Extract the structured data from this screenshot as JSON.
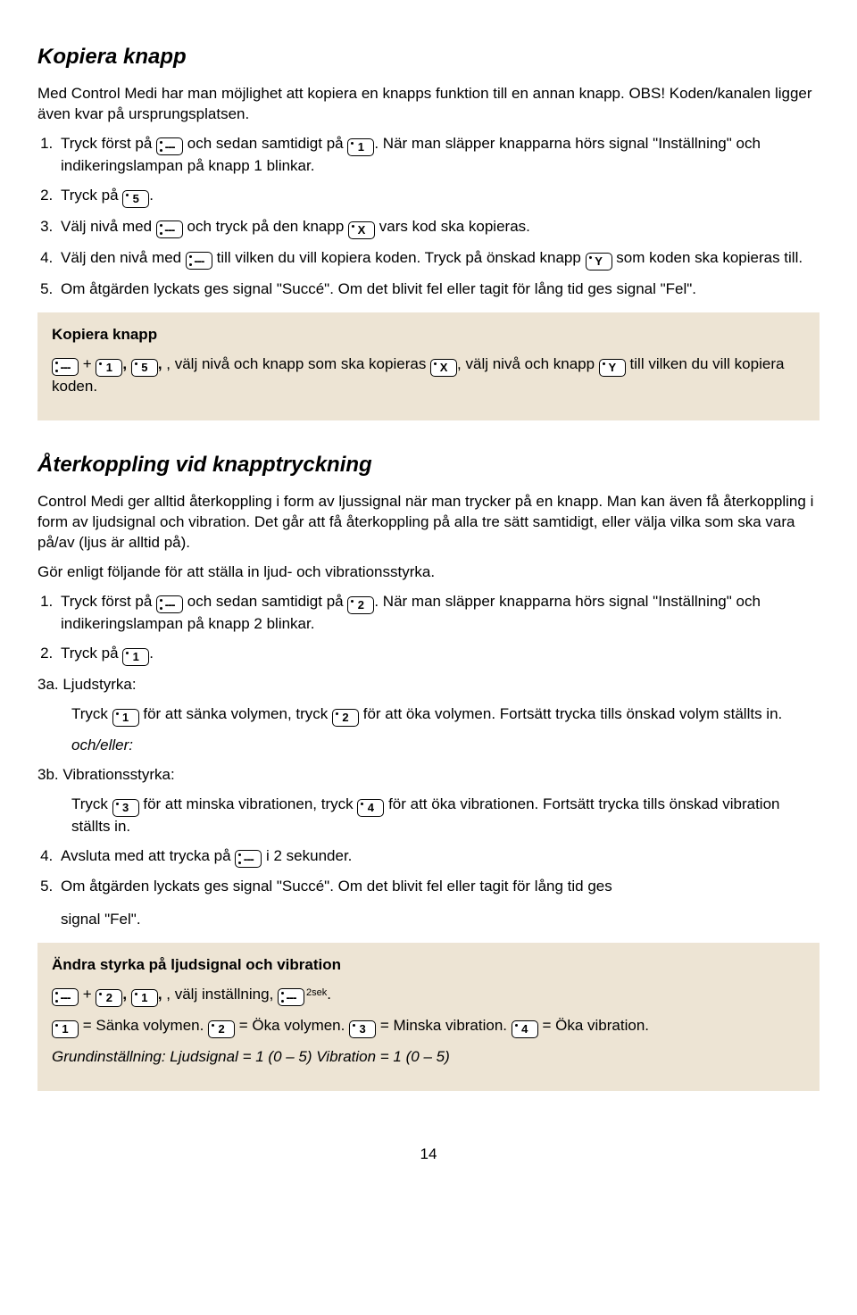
{
  "keys": {
    "dash": "---",
    "k1": "1",
    "k2": "2",
    "k3": "3",
    "k4": "4",
    "k5": "5",
    "kX": "X",
    "kY": "Y"
  },
  "sup2sek": "2sek",
  "section1": {
    "title": "Kopiera knapp",
    "intro": "Med Control Medi har man möjlighet att kopiera en knapps funktion till en annan knapp. OBS! Koden/kanalen ligger även kvar på ursprungsplatsen.",
    "step1_a": "Tryck först på ",
    "step1_b": " och sedan samtidigt på ",
    "step1_c": ". När man släpper knapparna hörs signal \"Inställning\" och indikeringslampan på knapp 1 blinkar.",
    "step2_a": "Tryck på ",
    "step2_b": ".",
    "step3_a": "Välj nivå med ",
    "step3_b": " och tryck på den knapp ",
    "step3_c": " vars kod ska kopieras.",
    "step4_a": "Välj den nivå med ",
    "step4_b": " till vilken du vill kopiera koden. Tryck på önskad knapp ",
    "step4_c": " som koden ska kopieras till.",
    "step5": "Om åtgärden lyckats ges signal \"Succé\". Om det blivit fel eller tagit för lång tid ges signal \"Fel\".",
    "summary_title": "Kopiera knapp",
    "sum_a": " + ",
    "sum_b": ", ",
    "sum_c": ", välj nivå och knapp som ska kopieras ",
    "sum_d": ", välj nivå och knapp ",
    "sum_e": " till vilken du vill kopiera koden."
  },
  "section2": {
    "title": "Återkoppling vid knapptryckning",
    "intro": "Control Medi ger alltid återkoppling i form av ljussignal när man trycker på en knapp. Man kan även få återkoppling i form av ljudsignal och vibration. Det går att få återkoppling på alla tre sätt samtidigt, eller välja vilka som ska vara på/av (ljus är alltid på).",
    "lead": "Gör enligt följande för att ställa in ljud- och vibrationsstyrka.",
    "step1_a": "Tryck först på ",
    "step1_b": " och sedan samtidigt på ",
    "step1_c": ". När man släpper knapparna hörs signal \"Inställning\" och indikeringslampan på knapp 2 blinkar.",
    "step2_a": "Tryck på ",
    "step2_b": ".",
    "li3a_label": "3a. Ljudstyrka:",
    "li3a_a": "Tryck ",
    "li3a_b": " för att sänka volymen, tryck ",
    "li3a_c": " för att öka volymen. Fortsätt trycka tills önskad volym ställts in.",
    "and_or": "och/eller:",
    "li3b_label": "3b. Vibrationsstyrka:",
    "li3b_a": "Tryck ",
    "li3b_b": " för att minska vibrationen, tryck ",
    "li3b_c": " för att öka vibrationen. Fortsätt trycka tills önskad vibration ställts in.",
    "step4_a": "Avsluta med att trycka på ",
    "step4_b": " i 2 sekunder.",
    "step5": " Om åtgärden lyckats ges signal \"Succé\". Om det blivit fel eller tagit för lång tid ges",
    "step5_b": "signal \"Fel\".",
    "summary_title": "Ändra styrka på ljudsignal och vibration",
    "sum_a": " + ",
    "sum_b": ", ",
    "sum_c": ", välj inställning, ",
    "sum_d": ".",
    "leg1a": " = Sänka volymen. ",
    "leg2a": " = Öka volymen. ",
    "leg3a": " = Minska vibration. ",
    "leg4a": " = Öka vibration.",
    "default": "Grundinställning: Ljudsignal = 1 (0 – 5)   Vibration = 1 (0 – 5)"
  },
  "page_number": "14"
}
